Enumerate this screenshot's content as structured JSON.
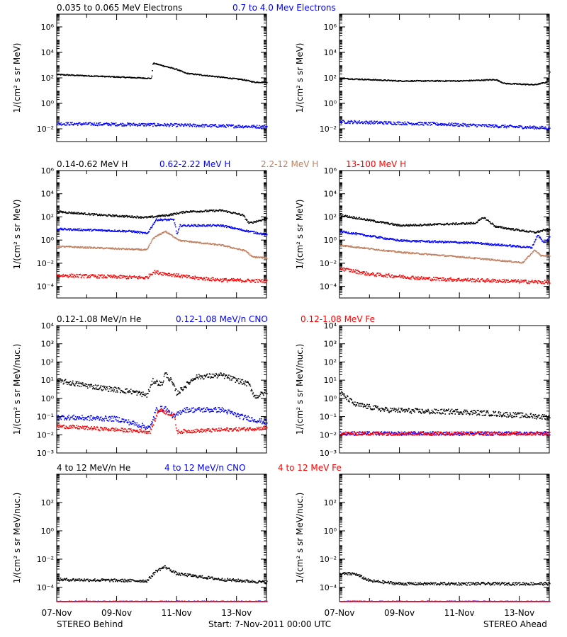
{
  "page": {
    "footer_left": "STEREO Behind",
    "footer_center": "Start:  7-Nov-2011 00:00 UTC",
    "footer_right": "STEREO Ahead",
    "date_ticks": [
      "07-Nov",
      "09-Nov",
      "11-Nov",
      "13-Nov"
    ]
  },
  "colors": {
    "black": "#000000",
    "blue": "#0000ff",
    "tan": "#c08060",
    "red": "#ff0000"
  },
  "chart_data": [
    {
      "row": 1,
      "type": "scatter",
      "log_y": true,
      "ylim_exp": [
        -3,
        7
      ],
      "tick_exps": [
        -2,
        0,
        2,
        4,
        6
      ],
      "ylabel": "1/(cm² s sr MeV)",
      "legend": [
        {
          "text": "0.035 to 0.065 MeV Electrons",
          "color": "black"
        },
        {
          "text": "0.7 to 4.0 Mev Electrons",
          "color": "blue"
        }
      ],
      "behind": [
        {
          "series": "0.035 to 0.065 MeV Electrons",
          "color": "black",
          "noise": 0.04,
          "pts": [
            [
              0,
              2.3
            ],
            [
              3.15,
              2.0
            ],
            [
              3.2,
              3.2
            ],
            [
              4.0,
              2.7
            ],
            [
              4.3,
              2.4
            ],
            [
              6.2,
              1.9
            ],
            [
              6.6,
              1.7
            ],
            [
              7.0,
              1.7
            ]
          ]
        },
        {
          "series": "0.7 to 4.0 Mev Electrons",
          "color": "blue",
          "noise": 0.12,
          "pts": [
            [
              0,
              -1.55
            ],
            [
              3.5,
              -1.65
            ],
            [
              7.0,
              -1.8
            ]
          ]
        }
      ],
      "ahead": [
        {
          "series": "0.035 to 0.065 MeV Electrons",
          "color": "black",
          "noise": 0.04,
          "pts": [
            [
              0,
              2.0
            ],
            [
              2.0,
              1.8
            ],
            [
              4.0,
              1.8
            ],
            [
              5.2,
              1.9
            ],
            [
              5.5,
              1.6
            ],
            [
              6.5,
              1.5
            ],
            [
              6.9,
              1.7
            ],
            [
              7.0,
              2.5
            ]
          ]
        },
        {
          "series": "0.7 to 4.0 Mev Electrons",
          "color": "blue",
          "noise": 0.12,
          "pts": [
            [
              0,
              -1.4
            ],
            [
              3.5,
              -1.6
            ],
            [
              7.0,
              -1.9
            ]
          ]
        }
      ]
    },
    {
      "row": 2,
      "type": "scatter",
      "log_y": true,
      "ylim_exp": [
        -5,
        6
      ],
      "tick_exps": [
        -4,
        -2,
        0,
        2,
        4,
        6
      ],
      "ylabel": "1/(cm² s sr MeV)",
      "legend": [
        {
          "text": "0.14-0.62 MeV H",
          "color": "black"
        },
        {
          "text": "0.62-2.22 MeV H",
          "color": "blue"
        },
        {
          "text": "2.2-12 MeV H",
          "color": "tan"
        },
        {
          "text": "13-100 MeV H",
          "color": "red"
        }
      ],
      "behind": [
        {
          "series": "0.14-0.62 MeV H",
          "color": "black",
          "noise": 0.08,
          "pts": [
            [
              0,
              2.5
            ],
            [
              1.5,
              2.2
            ],
            [
              3.0,
              2.0
            ],
            [
              3.7,
              2.2
            ],
            [
              4.3,
              2.5
            ],
            [
              5.5,
              2.6
            ],
            [
              6.2,
              2.2
            ],
            [
              6.4,
              1.5
            ],
            [
              7.0,
              1.9
            ]
          ]
        },
        {
          "series": "0.62-2.22 MeV H",
          "color": "blue",
          "noise": 0.08,
          "pts": [
            [
              0,
              1.0
            ],
            [
              2.5,
              0.8
            ],
            [
              3.0,
              0.6
            ],
            [
              3.3,
              1.8
            ],
            [
              3.9,
              1.8
            ],
            [
              4.0,
              0.5
            ],
            [
              4.1,
              1.3
            ],
            [
              5.5,
              1.3
            ],
            [
              6.2,
              0.9
            ],
            [
              7.0,
              0.5
            ]
          ]
        },
        {
          "series": "2.2-12 MeV H",
          "color": "tan",
          "noise": 0.06,
          "pts": [
            [
              0,
              -0.5
            ],
            [
              3.0,
              -0.8
            ],
            [
              3.2,
              0.2
            ],
            [
              3.6,
              0.8
            ],
            [
              4.1,
              0.0
            ],
            [
              5.5,
              -0.4
            ],
            [
              6.3,
              -0.9
            ],
            [
              6.5,
              -1.4
            ],
            [
              7.0,
              -1.5
            ]
          ]
        },
        {
          "series": "13-100 MeV H",
          "color": "red",
          "noise": 0.15,
          "pts": [
            [
              0,
              -3.0
            ],
            [
              3.0,
              -3.2
            ],
            [
              3.2,
              -2.7
            ],
            [
              4.5,
              -3.2
            ],
            [
              5.5,
              -3.4
            ],
            [
              7.0,
              -3.5
            ]
          ]
        }
      ],
      "ahead": [
        {
          "series": "0.14-0.62 MeV H",
          "color": "black",
          "noise": 0.08,
          "pts": [
            [
              0,
              2.2
            ],
            [
              2.0,
              1.3
            ],
            [
              4.5,
              1.5
            ],
            [
              4.8,
              2.0
            ],
            [
              5.2,
              1.2
            ],
            [
              6.5,
              0.7
            ],
            [
              7.0,
              1.0
            ]
          ]
        },
        {
          "series": "0.62-2.22 MeV H",
          "color": "blue",
          "noise": 0.08,
          "pts": [
            [
              0,
              0.8
            ],
            [
              2.0,
              0.0
            ],
            [
              4.5,
              -0.2
            ],
            [
              6.4,
              -0.6
            ],
            [
              6.6,
              0.5
            ],
            [
              6.8,
              -0.2
            ],
            [
              7.0,
              0.3
            ]
          ]
        },
        {
          "series": "2.2-12 MeV H",
          "color": "tan",
          "noise": 0.06,
          "pts": [
            [
              0,
              -0.4
            ],
            [
              2.0,
              -1.0
            ],
            [
              4.0,
              -1.4
            ],
            [
              6.1,
              -1.9
            ],
            [
              6.5,
              -0.8
            ],
            [
              6.7,
              -1.3
            ],
            [
              7.0,
              -1.3
            ]
          ]
        },
        {
          "series": "13-100 MeV H",
          "color": "red",
          "noise": 0.15,
          "pts": [
            [
              0,
              -2.4
            ],
            [
              1.0,
              -2.9
            ],
            [
              3.0,
              -3.3
            ],
            [
              7.0,
              -3.6
            ]
          ]
        }
      ]
    },
    {
      "row": 3,
      "type": "scatter",
      "log_y": true,
      "ylim_exp": [
        -3,
        4
      ],
      "tick_exps": [
        -3,
        -2,
        -1,
        0,
        1,
        2,
        3,
        4
      ],
      "ylabel": "1/(cm² s sr MeV/nuc.)",
      "legend": [
        {
          "text": "0.12-1.08 MeV/n He",
          "color": "black"
        },
        {
          "text": "0.12-1.08 MeV/n CNO",
          "color": "blue"
        },
        {
          "text": "0.12-1.08 MeV Fe",
          "color": "red"
        }
      ],
      "behind": [
        {
          "series": "0.12-1.08 MeV/n He",
          "color": "black",
          "noise": 0.14,
          "pts": [
            [
              0,
              1.0
            ],
            [
              1.5,
              0.6
            ],
            [
              2.5,
              0.4
            ],
            [
              3.0,
              0.2
            ],
            [
              3.2,
              1.0
            ],
            [
              3.5,
              0.8
            ],
            [
              3.6,
              1.4
            ],
            [
              3.8,
              1.0
            ],
            [
              4.0,
              0.3
            ],
            [
              4.6,
              1.2
            ],
            [
              5.5,
              1.3
            ],
            [
              6.4,
              0.8
            ],
            [
              6.6,
              0.1
            ],
            [
              7.0,
              0.4
            ]
          ]
        },
        {
          "series": "0.12-1.08 MeV/n CNO",
          "color": "blue",
          "noise": 0.14,
          "pts": [
            [
              0,
              -1.0
            ],
            [
              2.0,
              -1.1
            ],
            [
              3.1,
              -1.6
            ],
            [
              3.3,
              -0.6
            ],
            [
              3.6,
              -0.5
            ],
            [
              3.9,
              -1.0
            ],
            [
              4.2,
              -0.6
            ],
            [
              5.5,
              -0.6
            ],
            [
              6.2,
              -1.0
            ],
            [
              7.0,
              -1.3
            ]
          ]
        },
        {
          "series": "0.12-1.08 MeV Fe",
          "color": "red",
          "noise": 0.1,
          "pts": [
            [
              0,
              -1.5
            ],
            [
              3.1,
              -1.8
            ],
            [
              3.4,
              -0.6
            ],
            [
              3.9,
              -0.9
            ],
            [
              4.0,
              -1.8
            ],
            [
              7.0,
              -1.6
            ]
          ]
        }
      ],
      "ahead": [
        {
          "series": "0.12-1.08 MeV/n He",
          "color": "black",
          "noise": 0.14,
          "pts": [
            [
              0,
              0.35
            ],
            [
              0.5,
              -0.3
            ],
            [
              1.5,
              -0.6
            ],
            [
              3.0,
              -0.7
            ],
            [
              4.0,
              -0.7
            ],
            [
              5.0,
              -0.8
            ],
            [
              7.0,
              -1.0
            ]
          ]
        },
        {
          "series": "0.12-1.08 MeV/n CNO",
          "color": "blue",
          "noise": 0.1,
          "pts": [
            [
              0,
              -1.9
            ],
            [
              7.0,
              -1.9
            ]
          ]
        },
        {
          "series": "0.12-1.08 MeV Fe",
          "color": "red",
          "noise": 0.1,
          "pts": [
            [
              0,
              -1.9
            ],
            [
              7.0,
              -1.9
            ]
          ]
        }
      ]
    },
    {
      "row": 4,
      "type": "scatter",
      "log_y": true,
      "ylim_exp": [
        -5,
        4
      ],
      "tick_exps": [
        -4,
        -2,
        0,
        2
      ],
      "ylabel": "1/(cm² s sr MeV/nuc.)",
      "legend": [
        {
          "text": "4 to 12 MeV/n He",
          "color": "black"
        },
        {
          "text": "4 to 12 MeV/n CNO",
          "color": "blue"
        },
        {
          "text": "4 to 12 MeV Fe",
          "color": "red"
        }
      ],
      "behind": [
        {
          "series": "4 to 12 MeV/n He",
          "color": "black",
          "noise": 0.1,
          "pts": [
            [
              0,
              -3.4
            ],
            [
              3.0,
              -3.5
            ],
            [
              3.3,
              -2.8
            ],
            [
              3.6,
              -2.5
            ],
            [
              4.0,
              -3.0
            ],
            [
              5.5,
              -3.4
            ],
            [
              7.0,
              -3.6
            ]
          ]
        },
        {
          "series": "4 to 12 MeV/n CNO",
          "color": "blue",
          "noise": 0.08,
          "pts": [
            [
              0,
              -5.0
            ],
            [
              7.0,
              -5.0
            ]
          ]
        },
        {
          "series": "4 to 12 MeV Fe",
          "color": "red",
          "noise": 0.08,
          "pts": [
            [
              0,
              -5.0
            ],
            [
              7.0,
              -5.0
            ]
          ]
        }
      ],
      "ahead": [
        {
          "series": "4 to 12 MeV/n He",
          "color": "black",
          "noise": 0.1,
          "pts": [
            [
              0,
              -3.0
            ],
            [
              0.5,
              -3.0
            ],
            [
              1.0,
              -3.5
            ],
            [
              2.0,
              -3.7
            ],
            [
              4.0,
              -3.7
            ],
            [
              7.0,
              -3.7
            ]
          ]
        },
        {
          "series": "4 to 12 MeV/n CNO",
          "color": "blue",
          "noise": 0.08,
          "pts": [
            [
              0,
              -5.0
            ],
            [
              7.0,
              -5.0
            ]
          ]
        },
        {
          "series": "4 to 12 MeV Fe",
          "color": "red",
          "noise": 0.08,
          "pts": [
            [
              0,
              -5.0
            ],
            [
              7.0,
              -5.0
            ]
          ]
        }
      ]
    }
  ]
}
